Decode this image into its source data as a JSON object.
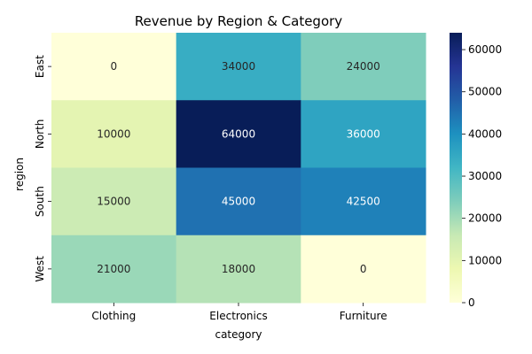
{
  "chart_data": {
    "type": "heatmap",
    "title": "Revenue by Region & Category",
    "xlabel": "category",
    "ylabel": "region",
    "x_categories": [
      "Clothing",
      "Electronics",
      "Furniture"
    ],
    "y_categories": [
      "East",
      "North",
      "South",
      "West"
    ],
    "values": [
      [
        0,
        34000,
        24000
      ],
      [
        10000,
        64000,
        36000
      ],
      [
        15000,
        45000,
        42500
      ],
      [
        21000,
        18000,
        0
      ]
    ],
    "value_range": [
      0,
      64000
    ],
    "colorbar": {
      "ticks": [
        0,
        10000,
        20000,
        30000,
        40000,
        50000,
        60000
      ]
    },
    "colormap": "YlGnBu"
  }
}
